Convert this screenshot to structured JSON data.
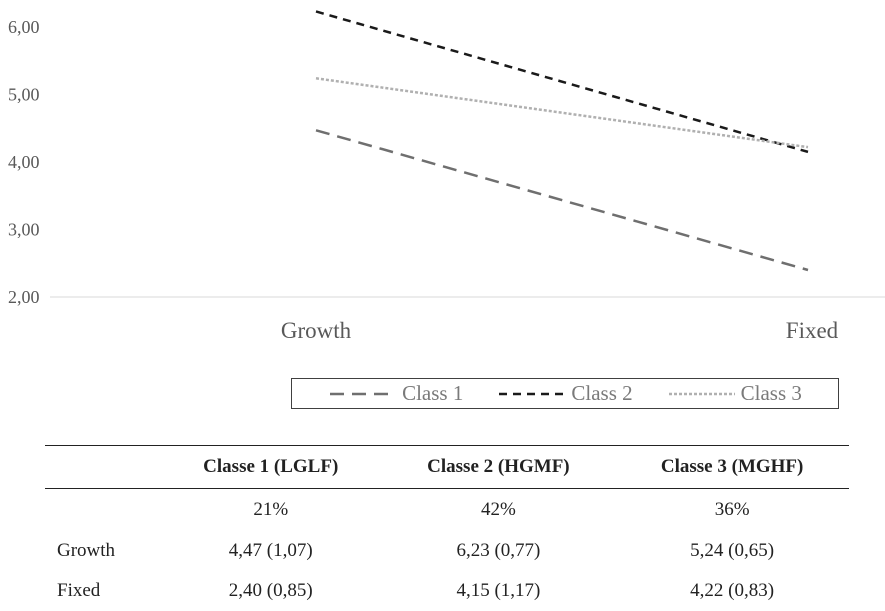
{
  "chart_data": {
    "type": "line",
    "categories": [
      "Growth",
      "Fixed"
    ],
    "ylim": [
      2,
      6
    ],
    "ytick_labels": [
      "2,00",
      "3,00",
      "4,00",
      "5,00",
      "6,00"
    ],
    "series": [
      {
        "name": "Class 1",
        "values": [
          4.47,
          2.4
        ],
        "color": "#6f6f6f",
        "dash": "long-dash"
      },
      {
        "name": "Class 2",
        "values": [
          6.23,
          4.15
        ],
        "color": "#1a1a1a",
        "dash": "dash"
      },
      {
        "name": "Class 3",
        "values": [
          5.24,
          4.22
        ],
        "color": "#b0b0b0",
        "dash": "dotted"
      }
    ],
    "grid": false,
    "legend_position": "bottom"
  },
  "table": {
    "headers": [
      "",
      "Classe 1 (LGLF)",
      "Classe 2 (HGMF)",
      "Classe 3 (MGHF)"
    ],
    "rows": [
      [
        "",
        "21%",
        "42%",
        "36%"
      ],
      [
        "Growth",
        "4,47 (1,07)",
        "6,23 (0,77)",
        "5,24 (0,65)"
      ],
      [
        "Fixed",
        "2,40 (0,85)",
        "4,15 (1,17)",
        "4,22 (0,83)"
      ]
    ]
  }
}
